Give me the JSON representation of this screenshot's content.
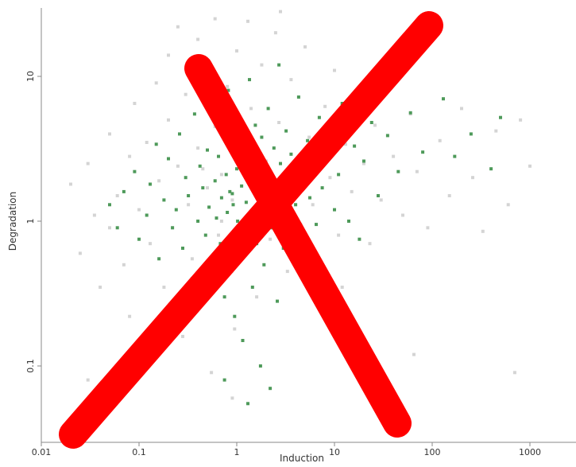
{
  "chart_data": {
    "type": "scatter",
    "title": "",
    "xlabel": "Induction",
    "ylabel": "Degradation",
    "x_scale": "log",
    "y_scale": "log",
    "xlim": [
      0.01,
      1000
    ],
    "ylim": [
      0.03,
      30
    ],
    "x_ticks": [
      "0.01",
      "0.1",
      "1",
      "10",
      "100",
      "1000"
    ],
    "y_ticks": [
      "0.1",
      "1",
      "10"
    ],
    "grid": false,
    "legend": "none",
    "series": [
      {
        "color": "#d4d4d4",
        "points": [
          [
            0.02,
            1.8
          ],
          [
            0.025,
            0.6
          ],
          [
            0.03,
            2.5
          ],
          [
            0.035,
            1.1
          ],
          [
            0.04,
            0.35
          ],
          [
            0.05,
            4.0
          ],
          [
            0.05,
            0.9
          ],
          [
            0.06,
            1.5
          ],
          [
            0.07,
            0.5
          ],
          [
            0.08,
            2.8
          ],
          [
            0.08,
            0.22
          ],
          [
            0.09,
            6.5
          ],
          [
            0.1,
            1.2
          ],
          [
            0.1,
            0.12
          ],
          [
            0.12,
            3.5
          ],
          [
            0.13,
            0.7
          ],
          [
            0.15,
            9.0
          ],
          [
            0.16,
            1.9
          ],
          [
            0.18,
            0.35
          ],
          [
            0.2,
            14.0
          ],
          [
            0.2,
            5.0
          ],
          [
            0.22,
            0.9
          ],
          [
            0.25,
            22.0
          ],
          [
            0.25,
            2.4
          ],
          [
            0.28,
            0.16
          ],
          [
            0.3,
            7.5
          ],
          [
            0.32,
            1.3
          ],
          [
            0.35,
            0.55
          ],
          [
            0.4,
            18.0
          ],
          [
            0.4,
            3.2
          ],
          [
            0.45,
            0.28
          ],
          [
            0.5,
            11.0
          ],
          [
            0.5,
            1.7
          ],
          [
            0.55,
            0.09
          ],
          [
            0.6,
            25.0
          ],
          [
            0.6,
            4.5
          ],
          [
            0.65,
            0.8
          ],
          [
            0.7,
            2.1
          ],
          [
            0.75,
            0.4
          ],
          [
            0.8,
            8.5
          ],
          [
            0.9,
            1.4
          ],
          [
            0.95,
            0.18
          ],
          [
            1.0,
            15.0
          ],
          [
            1.1,
            3.0
          ],
          [
            1.2,
            0.6
          ],
          [
            1.3,
            24.0
          ],
          [
            1.4,
            6.0
          ],
          [
            1.5,
            1.1
          ],
          [
            1.6,
            0.3
          ],
          [
            1.8,
            12.0
          ],
          [
            2.0,
            2.6
          ],
          [
            2.2,
            0.75
          ],
          [
            2.5,
            20.0
          ],
          [
            2.7,
            4.8
          ],
          [
            3.0,
            1.5
          ],
          [
            3.3,
            0.45
          ],
          [
            3.6,
            9.5
          ],
          [
            4.0,
            2.2
          ],
          [
            4.5,
            0.95
          ],
          [
            5.0,
            16.0
          ],
          [
            5.5,
            3.8
          ],
          [
            6.0,
            1.3
          ],
          [
            7.0,
            0.5
          ],
          [
            8.0,
            6.2
          ],
          [
            9.0,
            2.0
          ],
          [
            10.0,
            11.0
          ],
          [
            11.0,
            0.8
          ],
          [
            13.0,
            3.4
          ],
          [
            15.0,
            1.6
          ],
          [
            17.0,
            7.0
          ],
          [
            20.0,
            2.5
          ],
          [
            23.0,
            0.7
          ],
          [
            26.0,
            4.6
          ],
          [
            30.0,
            1.4
          ],
          [
            35.0,
            9.0
          ],
          [
            40.0,
            2.8
          ],
          [
            50.0,
            1.1
          ],
          [
            60.0,
            5.5
          ],
          [
            70.0,
            2.2
          ],
          [
            90.0,
            0.9
          ],
          [
            120.0,
            3.6
          ],
          [
            150.0,
            1.5
          ],
          [
            200.0,
            6.0
          ],
          [
            260.0,
            2.0
          ],
          [
            330.0,
            0.85
          ],
          [
            450.0,
            4.2
          ],
          [
            600.0,
            1.3
          ],
          [
            800.0,
            5.0
          ],
          [
            1000.0,
            2.4
          ],
          [
            2.8,
            28.0
          ],
          [
            0.9,
            0.06
          ],
          [
            12.0,
            0.35
          ],
          [
            65.0,
            0.12
          ],
          [
            700.0,
            0.09
          ],
          [
            0.03,
            0.08
          ],
          [
            0.45,
            2.3
          ],
          [
            0.7,
            1.0
          ],
          [
            1.7,
            1.9
          ]
        ]
      },
      {
        "color": "#4e9a5a",
        "points": [
          [
            0.05,
            1.3
          ],
          [
            0.06,
            0.9
          ],
          [
            0.07,
            1.6
          ],
          [
            0.09,
            2.2
          ],
          [
            0.1,
            0.75
          ],
          [
            0.12,
            1.1
          ],
          [
            0.13,
            1.8
          ],
          [
            0.15,
            3.4
          ],
          [
            0.16,
            0.55
          ],
          [
            0.18,
            1.4
          ],
          [
            0.2,
            2.7
          ],
          [
            0.22,
            0.9
          ],
          [
            0.24,
            1.2
          ],
          [
            0.26,
            4.0
          ],
          [
            0.28,
            0.65
          ],
          [
            0.3,
            2.0
          ],
          [
            0.32,
            1.5
          ],
          [
            0.35,
            0.4
          ],
          [
            0.37,
            5.5
          ],
          [
            0.4,
            1.0
          ],
          [
            0.42,
            2.4
          ],
          [
            0.45,
            1.7
          ],
          [
            0.48,
            0.8
          ],
          [
            0.5,
            3.1
          ],
          [
            0.52,
            1.25
          ],
          [
            0.55,
            0.5
          ],
          [
            0.58,
            6.8
          ],
          [
            0.6,
            1.9
          ],
          [
            0.62,
            1.05
          ],
          [
            0.65,
            2.8
          ],
          [
            0.68,
            0.7
          ],
          [
            0.7,
            1.45
          ],
          [
            0.72,
            4.3
          ],
          [
            0.75,
            0.3
          ],
          [
            0.78,
            2.1
          ],
          [
            0.8,
            1.15
          ],
          [
            0.82,
            8.0
          ],
          [
            0.85,
            1.6
          ],
          [
            0.88,
            0.45
          ],
          [
            0.9,
            3.5
          ],
          [
            0.92,
            1.3
          ],
          [
            0.95,
            0.22
          ],
          [
            1.0,
            2.3
          ],
          [
            1.02,
            1.0
          ],
          [
            1.05,
            5.0
          ],
          [
            1.1,
            0.6
          ],
          [
            1.12,
            1.75
          ],
          [
            1.15,
            0.15
          ],
          [
            1.2,
            3.0
          ],
          [
            1.25,
            1.35
          ],
          [
            1.3,
            0.85
          ],
          [
            1.35,
            9.5
          ],
          [
            1.4,
            2.0
          ],
          [
            1.45,
            0.35
          ],
          [
            1.5,
            1.2
          ],
          [
            1.55,
            4.6
          ],
          [
            1.6,
            0.7
          ],
          [
            1.65,
            2.6
          ],
          [
            1.7,
            1.55
          ],
          [
            1.75,
            0.1
          ],
          [
            1.8,
            3.8
          ],
          [
            1.85,
            1.1
          ],
          [
            1.9,
            0.5
          ],
          [
            2.0,
            2.2
          ],
          [
            2.1,
            6.0
          ],
          [
            2.2,
            1.4
          ],
          [
            2.3,
            0.9
          ],
          [
            2.4,
            3.2
          ],
          [
            2.5,
            1.8
          ],
          [
            2.6,
            0.28
          ],
          [
            2.7,
            12.0
          ],
          [
            2.8,
            2.5
          ],
          [
            2.9,
            1.05
          ],
          [
            3.0,
            0.65
          ],
          [
            3.2,
            4.2
          ],
          [
            3.4,
            1.6
          ],
          [
            3.6,
            2.9
          ],
          [
            3.8,
            0.8
          ],
          [
            4.0,
            1.3
          ],
          [
            4.3,
            7.2
          ],
          [
            4.6,
            2.0
          ],
          [
            5.0,
            0.55
          ],
          [
            5.3,
            3.6
          ],
          [
            5.6,
            1.45
          ],
          [
            6.0,
            2.4
          ],
          [
            6.5,
            0.95
          ],
          [
            7.0,
            5.2
          ],
          [
            7.5,
            1.7
          ],
          [
            8.0,
            0.4
          ],
          [
            9.0,
            3.0
          ],
          [
            10.0,
            1.2
          ],
          [
            11.0,
            2.1
          ],
          [
            12.0,
            6.5
          ],
          [
            14.0,
            1.0
          ],
          [
            16.0,
            3.3
          ],
          [
            18.0,
            0.75
          ],
          [
            20.0,
            2.6
          ],
          [
            24.0,
            4.8
          ],
          [
            28.0,
            1.5
          ],
          [
            35.0,
            3.9
          ],
          [
            45.0,
            2.2
          ],
          [
            60.0,
            5.6
          ],
          [
            80.0,
            3.0
          ],
          [
            130.0,
            7.0
          ],
          [
            170.0,
            2.8
          ],
          [
            250.0,
            4.0
          ],
          [
            400.0,
            2.3
          ],
          [
            500.0,
            5.2
          ],
          [
            1.3,
            0.055
          ],
          [
            0.75,
            0.08
          ],
          [
            2.2,
            0.07
          ],
          [
            0.9,
            1.55
          ]
        ]
      }
    ]
  },
  "overlay": {
    "type": "cross-mark",
    "color": "#ff0000"
  }
}
